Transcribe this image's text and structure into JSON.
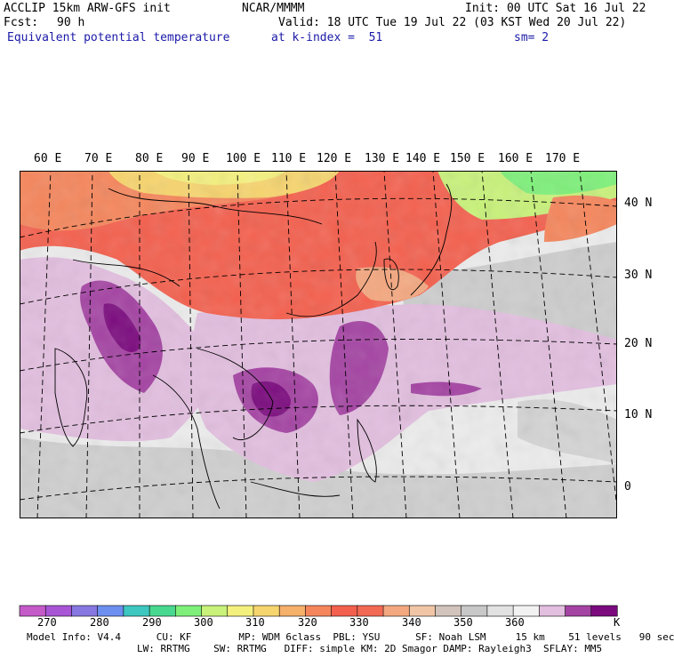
{
  "header": {
    "model": "ACCLIP 15km ARW-GFS init",
    "org": "NCAR/MMMM",
    "init": "Init: 00 UTC Sat 16 Jul 22",
    "fcst_label": "Fcst:",
    "fcst_value": "90 h",
    "valid": "Valid: 18 UTC Tue 19 Jul 22 (03 KST Wed 20 Jul 22)",
    "field": "Equivalent potential temperature",
    "level": "at k-index =  51",
    "smoothing": "sm= 2"
  },
  "map": {
    "lon_labels": [
      "60 E",
      "70 E",
      "80 E",
      "90 E",
      "100 E",
      "110 E",
      "120 E",
      "130 E",
      "140 E",
      "150 E",
      "160 E",
      "170 E"
    ],
    "lat_labels": [
      "40 N",
      "30 N",
      "20 N",
      "10 N",
      "0"
    ]
  },
  "colorbar": {
    "colors": [
      "#c45ac8",
      "#a855d6",
      "#8678e0",
      "#6c8ff0",
      "#3ec6c0",
      "#48d890",
      "#7ef07a",
      "#c8f27a",
      "#f4f07e",
      "#f6d46e",
      "#f5b06a",
      "#f5865c",
      "#f4604e",
      "#f26a54",
      "#f4a880",
      "#f1c6a6",
      "#d2c4bc",
      "#c8c8c8",
      "#e2e2e2",
      "#f2f2f2",
      "#e2bedf",
      "#a443a3",
      "#7b0a7e"
    ],
    "tick_labels": [
      "270",
      "280",
      "290",
      "300",
      "310",
      "320",
      "330",
      "340",
      "350",
      "360"
    ],
    "unit": "K"
  },
  "footer": {
    "line1": "Model Info: V4.4      CU: KF        MP: WDM 6class  PBL: YSU      SF: Noah LSM     15 km    51 levels   90 sec",
    "line2": "LW: RRTMG    SW: RRTMG   DIFF: simple KM: 2D Smagor DAMP: Rayleigh3  SFLAY: MM5"
  }
}
